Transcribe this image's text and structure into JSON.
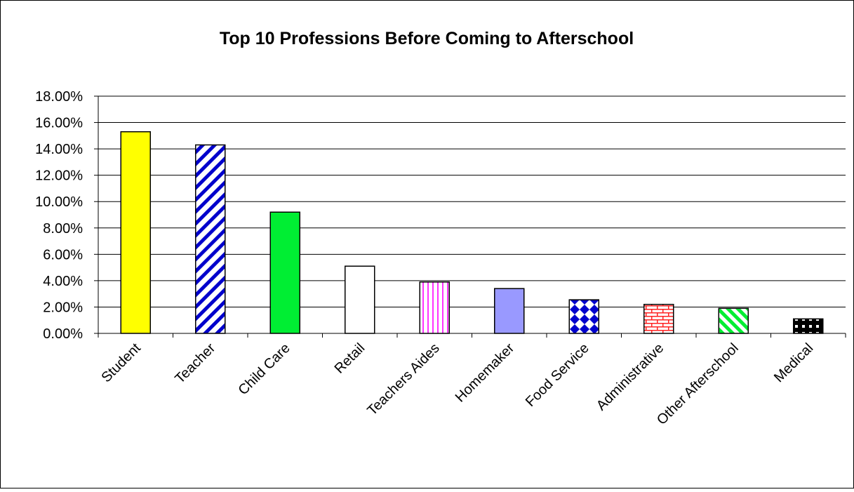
{
  "chart_data": {
    "type": "bar",
    "title": "Top 10 Professions Before Coming to Afterschool",
    "xlabel": "",
    "ylabel": "",
    "ylim": [
      0,
      18
    ],
    "y_ticks": [
      "0.00%",
      "2.00%",
      "4.00%",
      "6.00%",
      "8.00%",
      "10.00%",
      "12.00%",
      "14.00%",
      "16.00%",
      "18.00%"
    ],
    "y_tick_values": [
      0,
      2,
      4,
      6,
      8,
      10,
      12,
      14,
      16,
      18
    ],
    "grid": true,
    "legend": "none",
    "categories": [
      "Student",
      "Teacher",
      "Child Care",
      "Retail",
      "Teachers Aides",
      "Homemaker",
      "Food Service",
      "Administrative",
      "Other Afterschool",
      "Medical"
    ],
    "values": [
      15.3,
      14.3,
      9.2,
      5.1,
      3.9,
      3.4,
      2.55,
      2.2,
      1.9,
      1.1
    ],
    "bar_fills": [
      {
        "pattern": "solid",
        "color": "#ffff00"
      },
      {
        "pattern": "diagonal-stripes",
        "color": "#0000cc",
        "bg": "#ffffff"
      },
      {
        "pattern": "solid",
        "color": "#00ee33"
      },
      {
        "pattern": "solid",
        "color": "#ffffff"
      },
      {
        "pattern": "vertical-stripes",
        "color": "#ff33ff",
        "bg": "#ffffff"
      },
      {
        "pattern": "solid",
        "color": "#9999ff"
      },
      {
        "pattern": "diamonds",
        "color": "#0000cc",
        "bg": "#ffffff"
      },
      {
        "pattern": "bricks",
        "color": "#ff2222",
        "bg": "#ffffff"
      },
      {
        "pattern": "diagonal-stripes",
        "color": "#00ee33",
        "bg": "#ffffff"
      },
      {
        "pattern": "blocks",
        "color": "#000000",
        "bg": "#ffffff"
      }
    ]
  }
}
